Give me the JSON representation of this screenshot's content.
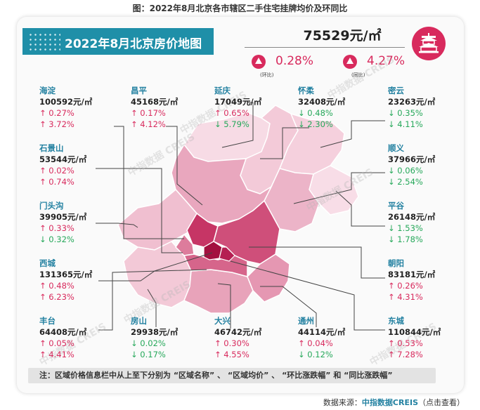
{
  "figure_title": "图：2022年8月北京各市辖区二手住宅挂牌均价及环同比",
  "banner_title": "2022年8月北京房价地图",
  "summary": {
    "avg_price": "75529元/㎡",
    "mom": {
      "value": "0.28%",
      "caption": "(环比)",
      "direction": "up"
    },
    "yoy": {
      "value": "4.27%",
      "caption": "(同比)",
      "direction": "up"
    }
  },
  "watermark": "中指数据 CREIS",
  "note": "注：区域价格信息栏中从上至下分别为 “区域名称” 、 “区域均价” 、 “环比涨跌幅” 和 “同比涨跌幅”",
  "source": {
    "label": "数据来源：",
    "brand": "中指数据CREIS",
    "suffix": "（点击查看）"
  },
  "colors": {
    "accent": "#1f8fa8",
    "up": "#d82a5d",
    "down": "#26a85a",
    "district_name": "#2381a1"
  },
  "chart_data": {
    "type": "table",
    "title": "2022年8月北京房价地图",
    "columns": [
      "区域名称",
      "区域均价",
      "环比涨跌幅",
      "同比涨跌幅"
    ],
    "rows": [
      {
        "name": "海淀",
        "price": "100592元/㎡",
        "mom": "0.27%",
        "mom_dir": "up",
        "yoy": "3.72%",
        "yoy_dir": "up"
      },
      {
        "name": "昌平",
        "price": "45168元/㎡",
        "mom": "0.17%",
        "mom_dir": "up",
        "yoy": "4.12%",
        "yoy_dir": "up"
      },
      {
        "name": "延庆",
        "price": "17049元/㎡",
        "mom": "0.65%",
        "mom_dir": "up",
        "yoy": "5.79%",
        "yoy_dir": "down"
      },
      {
        "name": "怀柔",
        "price": "32408元/㎡",
        "mom": "0.48%",
        "mom_dir": "down",
        "yoy": "2.30%",
        "yoy_dir": "down"
      },
      {
        "name": "密云",
        "price": "23263元/㎡",
        "mom": "0.35%",
        "mom_dir": "down",
        "yoy": "4.11%",
        "yoy_dir": "down"
      },
      {
        "name": "石景山",
        "price": "53544元/㎡",
        "mom": "0.02%",
        "mom_dir": "up",
        "yoy": "0.74%",
        "yoy_dir": "up"
      },
      {
        "name": "顺义",
        "price": "37966元/㎡",
        "mom": "0.06%",
        "mom_dir": "down",
        "yoy": "2.54%",
        "yoy_dir": "down"
      },
      {
        "name": "门头沟",
        "price": "39905元/㎡",
        "mom": "0.33%",
        "mom_dir": "up",
        "yoy": "0.32%",
        "yoy_dir": "down"
      },
      {
        "name": "平谷",
        "price": "26148元/㎡",
        "mom": "1.53%",
        "mom_dir": "down",
        "yoy": "1.78%",
        "yoy_dir": "down"
      },
      {
        "name": "西城",
        "price": "131365元/㎡",
        "mom": "0.48%",
        "mom_dir": "up",
        "yoy": "6.23%",
        "yoy_dir": "up"
      },
      {
        "name": "朝阳",
        "price": "83181元/㎡",
        "mom": "0.26%",
        "mom_dir": "up",
        "yoy": "4.31%",
        "yoy_dir": "up"
      },
      {
        "name": "丰台",
        "price": "64408元/㎡",
        "mom": "0.05%",
        "mom_dir": "up",
        "yoy": "4.41%",
        "yoy_dir": "up"
      },
      {
        "name": "房山",
        "price": "29938元/㎡",
        "mom": "0.02%",
        "mom_dir": "down",
        "yoy": "0.17%",
        "yoy_dir": "down"
      },
      {
        "name": "大兴",
        "price": "46742元/㎡",
        "mom": "0.30%",
        "mom_dir": "up",
        "yoy": "4.55%",
        "yoy_dir": "up"
      },
      {
        "name": "通州",
        "price": "44114元/㎡",
        "mom": "0.04%",
        "mom_dir": "up",
        "yoy": "0.12%",
        "yoy_dir": "down"
      },
      {
        "name": "东城",
        "price": "110844元/㎡",
        "mom": "0.53%",
        "mom_dir": "up",
        "yoy": "7.28%",
        "yoy_dir": "up"
      }
    ]
  }
}
